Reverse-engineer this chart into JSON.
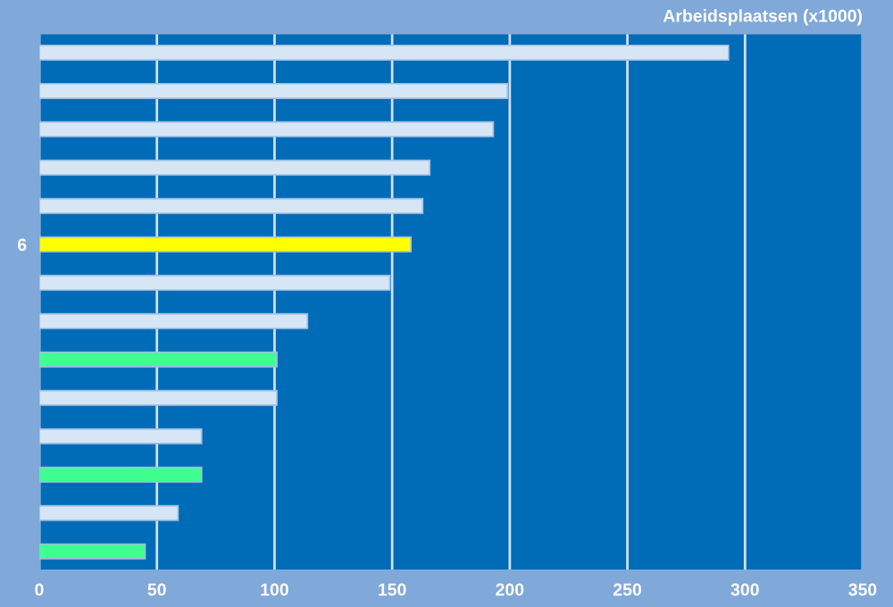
{
  "chart_data": {
    "type": "bar",
    "orientation": "horizontal",
    "xlabel": "Arbeidsplaatsen (x1000)",
    "categories": [
      null,
      null,
      null,
      null,
      null,
      "6",
      null,
      null,
      null,
      null,
      null,
      null,
      null,
      null
    ],
    "values": [
      293,
      199,
      193,
      166,
      163,
      158,
      149,
      114,
      101,
      101,
      69,
      69,
      59,
      45
    ],
    "colors": [
      "#d6e6f4",
      "#d6e6f4",
      "#d6e6f4",
      "#d6e6f4",
      "#d6e6f4",
      "#ffff00",
      "#d6e6f4",
      "#d6e6f4",
      "#40ff90",
      "#d6e6f4",
      "#d6e6f4",
      "#40ff90",
      "#d6e6f4",
      "#40ff90"
    ],
    "xlim": [
      0,
      350
    ],
    "xticks": [
      0,
      50,
      100,
      150,
      200,
      250,
      300,
      350
    ],
    "grid": "x",
    "legend": false
  }
}
